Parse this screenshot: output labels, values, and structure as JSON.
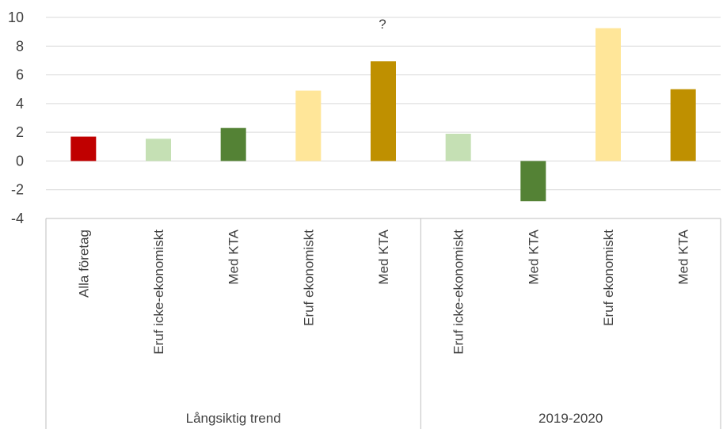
{
  "chart_data": {
    "type": "bar",
    "title": "",
    "xlabel": "",
    "ylabel": "",
    "ylim": [
      -4,
      10
    ],
    "yticks": [
      -4,
      -2,
      0,
      2,
      4,
      6,
      8,
      10
    ],
    "grid": true,
    "legend": "none",
    "annotation": "?",
    "groups": [
      {
        "label": "Långsiktig trend",
        "count": 5
      },
      {
        "label": "2019-2020",
        "count": 4
      }
    ],
    "categories": [
      "Alla företag",
      "Eruf icke-ekonomiskt",
      "Med KTA",
      "Eruf ekonomiskt",
      "Med KTA",
      "Eruf icke-ekonomiskt",
      "Med KTA",
      "Eruf ekonomiskt",
      "Med KTA"
    ],
    "values": [
      1.7,
      1.55,
      2.3,
      4.9,
      6.95,
      1.9,
      -2.8,
      9.25,
      5.0
    ],
    "colors": [
      "#c00000",
      "#c5e0b4",
      "#548235",
      "#ffe699",
      "#bf9000",
      "#c5e0b4",
      "#548235",
      "#ffe699",
      "#bf9000"
    ]
  }
}
